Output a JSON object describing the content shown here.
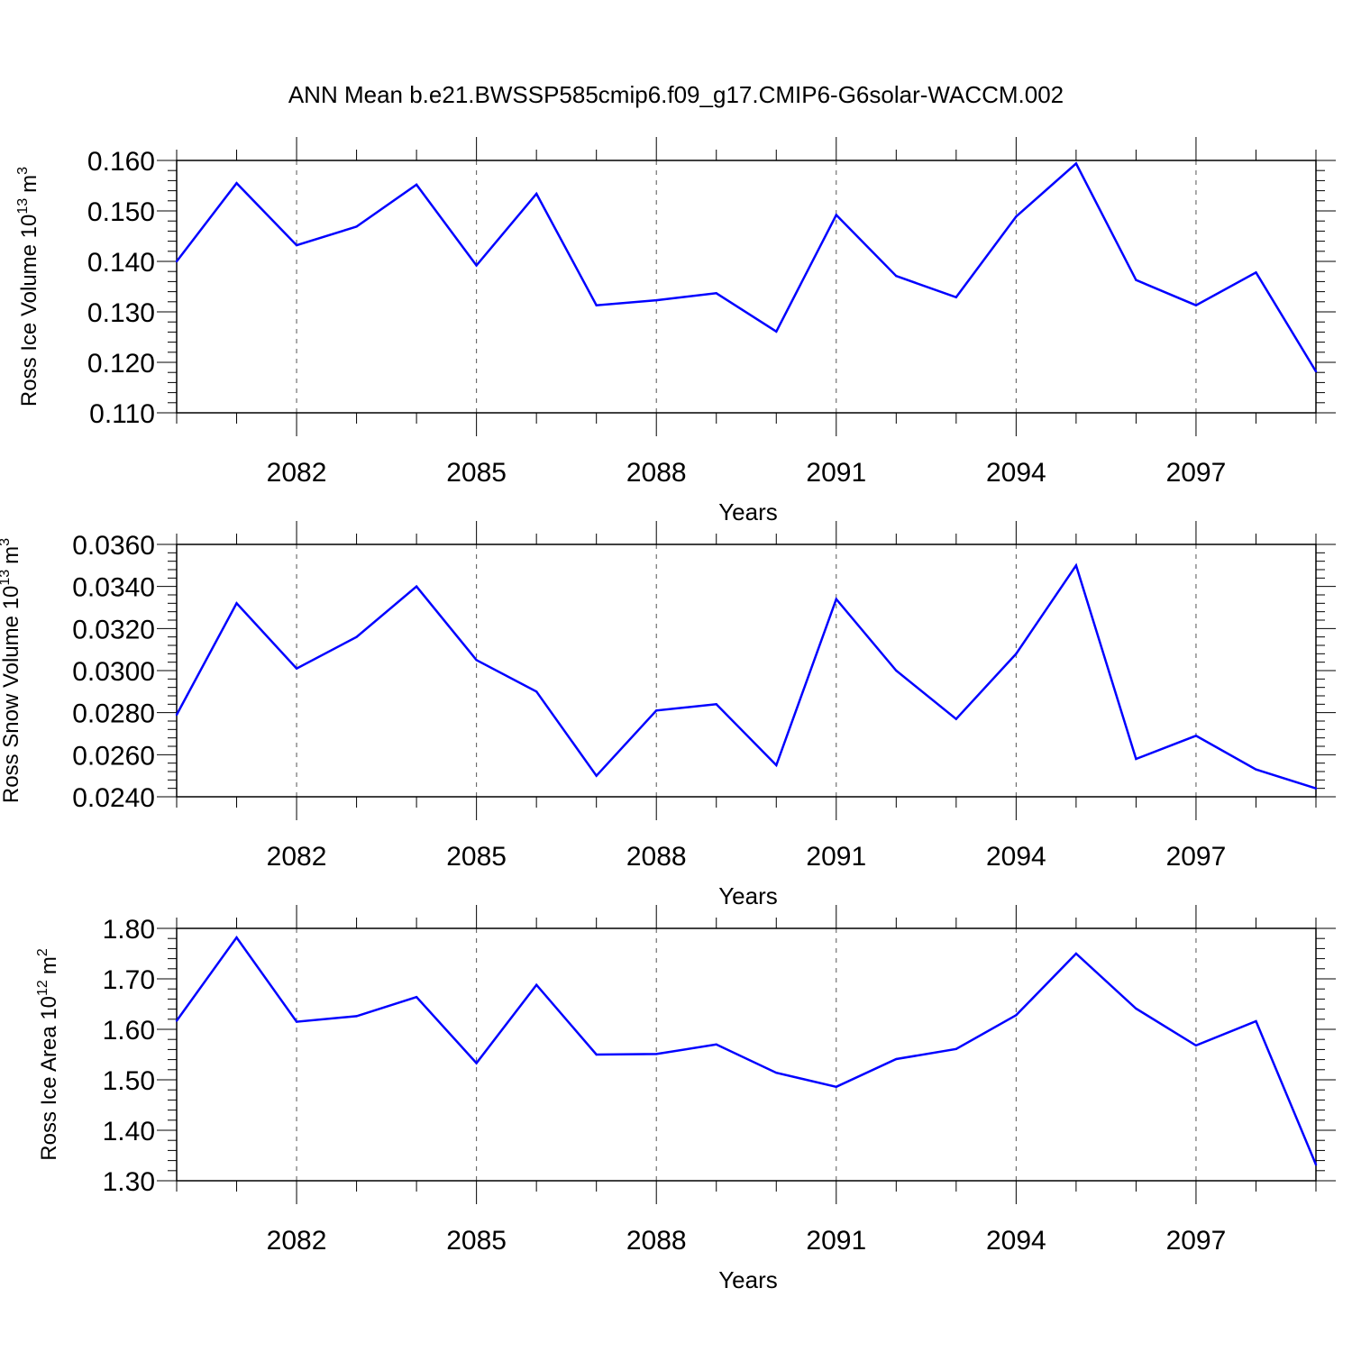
{
  "title": "ANN Mean b.e21.BWSSP585cmip6.f09_g17.CMIP6-G6solar-WACCM.002",
  "line_color": "#0000ff",
  "chart_data": [
    {
      "type": "line",
      "ylabel": "Ross Ice Volume 10",
      "ylabel_exp": "13",
      "ylabel_unit": "m",
      "ylabel_unit_exp": "3",
      "xlabel": "Years",
      "x": [
        2080,
        2081,
        2082,
        2083,
        2084,
        2085,
        2086,
        2087,
        2088,
        2089,
        2090,
        2091,
        2092,
        2093,
        2094,
        2095,
        2096,
        2097,
        2098,
        2099
      ],
      "xlim": [
        2080,
        2099
      ],
      "xticks": [
        2082,
        2085,
        2088,
        2091,
        2094,
        2097
      ],
      "xtick_labels": [
        "2082",
        "2085",
        "2088",
        "2091",
        "2094",
        "2097"
      ],
      "ylim": [
        0.11,
        0.16
      ],
      "yticks": [
        0.11,
        0.12,
        0.13,
        0.14,
        0.15,
        0.16
      ],
      "ytick_labels": [
        "0.110",
        "0.120",
        "0.130",
        "0.140",
        "0.150",
        "0.160"
      ],
      "values": [
        0.14,
        0.1555,
        0.1432,
        0.1469,
        0.1552,
        0.1392,
        0.1534,
        0.1313,
        0.1323,
        0.1337,
        0.1261,
        0.1492,
        0.1371,
        0.1329,
        0.1489,
        0.1594,
        0.1363,
        0.1313,
        0.1378,
        0.1182
      ]
    },
    {
      "type": "line",
      "ylabel": "Ross Snow Volume 10",
      "ylabel_exp": "13",
      "ylabel_unit": "m",
      "ylabel_unit_exp": "3",
      "xlabel": "Years",
      "x": [
        2080,
        2081,
        2082,
        2083,
        2084,
        2085,
        2086,
        2087,
        2088,
        2089,
        2090,
        2091,
        2092,
        2093,
        2094,
        2095,
        2096,
        2097,
        2098,
        2099
      ],
      "xlim": [
        2080,
        2099
      ],
      "xticks": [
        2082,
        2085,
        2088,
        2091,
        2094,
        2097
      ],
      "xtick_labels": [
        "2082",
        "2085",
        "2088",
        "2091",
        "2094",
        "2097"
      ],
      "ylim": [
        0.024,
        0.036
      ],
      "yticks": [
        0.024,
        0.026,
        0.028,
        0.03,
        0.032,
        0.034,
        0.036
      ],
      "ytick_labels": [
        "0.0240",
        "0.0260",
        "0.0280",
        "0.0300",
        "0.0320",
        "0.0340",
        "0.0360"
      ],
      "values": [
        0.0279,
        0.0332,
        0.0301,
        0.0316,
        0.034,
        0.0305,
        0.029,
        0.025,
        0.0281,
        0.0284,
        0.0255,
        0.0334,
        0.03,
        0.0277,
        0.0308,
        0.035,
        0.0258,
        0.0269,
        0.0253,
        0.0244
      ]
    },
    {
      "type": "line",
      "ylabel": "Ross Ice Area 10",
      "ylabel_exp": "12",
      "ylabel_unit": "m",
      "ylabel_unit_exp": "2",
      "xlabel": "Years",
      "x": [
        2080,
        2081,
        2082,
        2083,
        2084,
        2085,
        2086,
        2087,
        2088,
        2089,
        2090,
        2091,
        2092,
        2093,
        2094,
        2095,
        2096,
        2097,
        2098,
        2099
      ],
      "xlim": [
        2080,
        2099
      ],
      "xticks": [
        2082,
        2085,
        2088,
        2091,
        2094,
        2097
      ],
      "xtick_labels": [
        "2082",
        "2085",
        "2088",
        "2091",
        "2094",
        "2097"
      ],
      "ylim": [
        1.3,
        1.8
      ],
      "yticks": [
        1.3,
        1.4,
        1.5,
        1.6,
        1.7,
        1.8
      ],
      "ytick_labels": [
        "1.30",
        "1.40",
        "1.50",
        "1.60",
        "1.70",
        "1.80"
      ],
      "values": [
        1.617,
        1.782,
        1.615,
        1.626,
        1.664,
        1.533,
        1.688,
        1.55,
        1.551,
        1.57,
        1.514,
        1.486,
        1.541,
        1.561,
        1.628,
        1.75,
        1.641,
        1.568,
        1.616,
        1.332
      ]
    }
  ]
}
